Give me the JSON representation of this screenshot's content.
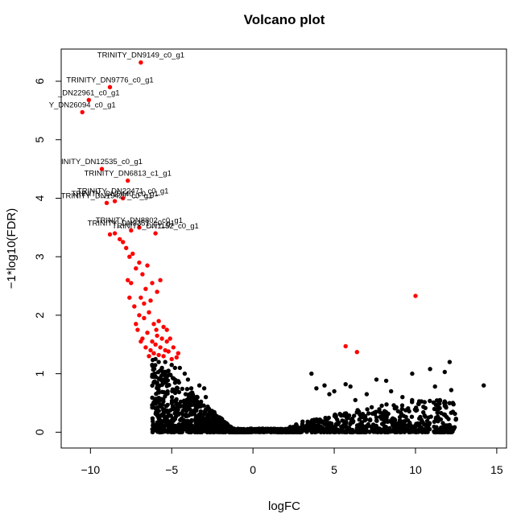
{
  "colors": {
    "significant": "#ff0000",
    "nonsignificant": "#000000"
  },
  "chart_data": {
    "type": "scatter",
    "title": "Volcano plot",
    "xlabel": "logFC",
    "ylabel": "−1*log10(FDR)",
    "xlim": [
      -11.8,
      15.6
    ],
    "ylim": [
      -0.27,
      6.55
    ],
    "xticks": [
      -10,
      -5,
      0,
      5,
      10,
      15
    ],
    "yticks": [
      0,
      1,
      2,
      3,
      4,
      5,
      6
    ],
    "xtick_labels": [
      "−10",
      "−5",
      "0",
      "5",
      "10",
      "15"
    ],
    "ytick_labels": [
      "0",
      "1",
      "2",
      "3",
      "4",
      "5",
      "6"
    ],
    "legend": "none",
    "grid": false,
    "labeled_points": [
      {
        "label": "TRINITY_DN9149_c0_g1",
        "x": -6.9,
        "y": 6.32
      },
      {
        "label": "TRINITY_DN9776_c0_g1",
        "x": -8.8,
        "y": 5.9
      },
      {
        "label": "_DN22961_c0_g1",
        "x": -10.1,
        "y": 5.68
      },
      {
        "label": "Y_DN26094_c0_g1",
        "x": -10.5,
        "y": 5.47
      },
      {
        "label": "INITY_DN12535_c0_g1",
        "x": -9.3,
        "y": 4.5
      },
      {
        "label": "TRINITY_DN6813_c1_g1",
        "x": -7.7,
        "y": 4.3
      },
      {
        "label": "TRINITY_DN22471_c0_g1",
        "x": -8.0,
        "y": 4.0
      },
      {
        "label": "TRINITY_DN5440_c0_g1",
        "x": -8.5,
        "y": 3.95
      },
      {
        "label": "TRINITY_DN19427_c0_g1",
        "x": -9.0,
        "y": 3.92
      },
      {
        "label": "TRINITY_DN8802_c0_g1",
        "x": -7.0,
        "y": 3.5
      },
      {
        "label": "TRINITY_DN3351_c0_g1",
        "x": -7.5,
        "y": 3.45
      },
      {
        "label": "TRINITY_DN1152_c0_g1",
        "x": -6.0,
        "y": 3.4
      }
    ],
    "significant_points": [
      [
        -10.5,
        5.47
      ],
      [
        -10.1,
        5.68
      ],
      [
        -8.8,
        5.9
      ],
      [
        -6.9,
        6.32
      ],
      [
        -9.3,
        4.5
      ],
      [
        -7.7,
        4.3
      ],
      [
        -9.0,
        3.92
      ],
      [
        -8.5,
        3.95
      ],
      [
        -8.0,
        4.0
      ],
      [
        -7.5,
        3.45
      ],
      [
        -7.0,
        3.5
      ],
      [
        -6.0,
        3.4
      ],
      [
        -8.8,
        3.38
      ],
      [
        -8.5,
        3.4
      ],
      [
        -8.2,
        3.3
      ],
      [
        -8.0,
        3.25
      ],
      [
        -7.8,
        3.15
      ],
      [
        -7.6,
        3.0
      ],
      [
        -7.4,
        3.05
      ],
      [
        -7.2,
        2.8
      ],
      [
        -7.0,
        2.9
      ],
      [
        -7.7,
        2.6
      ],
      [
        -7.5,
        2.55
      ],
      [
        -6.8,
        2.7
      ],
      [
        -6.5,
        2.85
      ],
      [
        -6.2,
        2.55
      ],
      [
        -5.7,
        2.6
      ],
      [
        -6.9,
        2.3
      ],
      [
        -6.6,
        2.45
      ],
      [
        -6.3,
        2.25
      ],
      [
        -5.9,
        2.4
      ],
      [
        -7.3,
        2.15
      ],
      [
        -7.0,
        2.0
      ],
      [
        -6.7,
        1.95
      ],
      [
        -6.4,
        2.05
      ],
      [
        -6.1,
        1.85
      ],
      [
        -5.8,
        1.9
      ],
      [
        -5.5,
        1.8
      ],
      [
        -7.1,
        1.75
      ],
      [
        -6.8,
        1.6
      ],
      [
        -6.5,
        1.7
      ],
      [
        -6.2,
        1.55
      ],
      [
        -5.9,
        1.65
      ],
      [
        -5.6,
        1.6
      ],
      [
        -5.3,
        1.75
      ],
      [
        -6.6,
        1.45
      ],
      [
        -6.3,
        1.4
      ],
      [
        -6.0,
        1.5
      ],
      [
        -5.7,
        1.45
      ],
      [
        -5.4,
        1.4
      ],
      [
        -5.1,
        1.6
      ],
      [
        -6.4,
        1.3
      ],
      [
        -6.1,
        1.35
      ],
      [
        -5.8,
        1.32
      ],
      [
        -5.5,
        1.3
      ],
      [
        -5.2,
        1.38
      ],
      [
        -4.9,
        1.45
      ],
      [
        -4.6,
        1.35
      ],
      [
        -6.9,
        1.55
      ],
      [
        -7.2,
        1.85
      ],
      [
        -5.0,
        1.25
      ],
      [
        -4.7,
        1.28
      ],
      [
        -5.3,
        1.55
      ],
      [
        -5.95,
        1.75
      ],
      [
        -6.7,
        2.2
      ],
      [
        -7.6,
        2.3
      ],
      [
        5.7,
        1.47
      ],
      [
        6.4,
        1.37
      ],
      [
        10.0,
        2.33
      ]
    ],
    "nonsignificant_points": [
      [
        -6.0,
        1.25
      ],
      [
        -5.8,
        1.2
      ],
      [
        -5.4,
        1.2
      ],
      [
        -5.6,
        1.1
      ],
      [
        -5.2,
        1.05
      ],
      [
        -5.0,
        1.15
      ],
      [
        -6.2,
        0.95
      ],
      [
        -4.8,
        1.1
      ],
      [
        -4.5,
        1.1
      ],
      [
        -4.2,
        1.0
      ],
      [
        -5.9,
        0.85
      ],
      [
        -5.5,
        0.9
      ],
      [
        -4.0,
        0.9
      ],
      [
        -3.8,
        0.75
      ],
      [
        -3.3,
        0.8
      ],
      [
        -3.0,
        0.75
      ],
      [
        -3.6,
        0.6
      ],
      [
        -2.9,
        0.6
      ],
      [
        3.6,
        1.0
      ],
      [
        4.4,
        0.8
      ],
      [
        4.7,
        0.65
      ],
      [
        5.0,
        0.7
      ],
      [
        5.7,
        0.82
      ],
      [
        7.6,
        0.9
      ],
      [
        8.2,
        0.88
      ],
      [
        9.8,
        1.0
      ],
      [
        10.9,
        1.08
      ],
      [
        11.8,
        1.03
      ],
      [
        12.1,
        1.2
      ],
      [
        11.2,
        0.78
      ],
      [
        14.2,
        0.8
      ],
      [
        12.2,
        0.72
      ],
      [
        12.3,
        0.5
      ],
      [
        12.3,
        0.35
      ],
      [
        11.5,
        0.55
      ],
      [
        11.8,
        0.45
      ],
      [
        8.5,
        0.7
      ],
      [
        9.2,
        0.6
      ],
      [
        7.0,
        0.65
      ],
      [
        6.3,
        0.55
      ],
      [
        3.9,
        0.75
      ],
      [
        6.0,
        0.78
      ]
    ]
  }
}
